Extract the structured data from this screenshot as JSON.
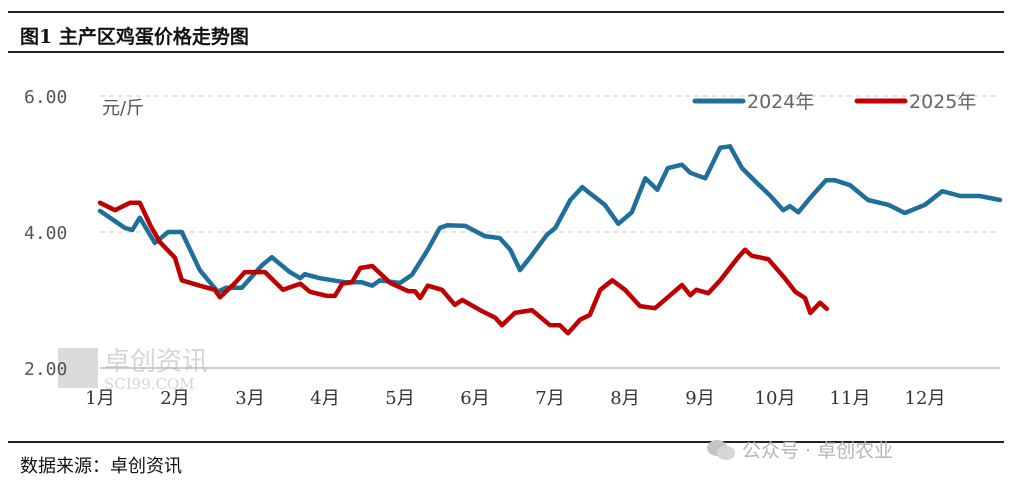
{
  "header": {
    "title": "图1  主产区鸡蛋价格走势图"
  },
  "footer": {
    "source": "数据来源：卓创资讯",
    "watermark": "公众号 · 卓创农业"
  },
  "chart_watermark": {
    "name": "卓创资讯",
    "domain": "SCI99.COM"
  },
  "chart_data": {
    "type": "line",
    "title": "主产区鸡蛋价格走势图",
    "ylabel": "元/斤",
    "ylim": [
      2,
      6
    ],
    "yticks": [
      "2.00",
      "4.00",
      "6.00"
    ],
    "ytick_values": [
      2,
      4,
      6
    ],
    "xlim": [
      0,
      12
    ],
    "xticks": [
      "1月",
      "2月",
      "3月",
      "4月",
      "5月",
      "6月",
      "7月",
      "8月",
      "9月",
      "10月",
      "11月",
      "12月"
    ],
    "grid": true,
    "legend_position": "top-right",
    "colors": {
      "2024年": "#1f6f9b",
      "2025年": "#c00000"
    },
    "series": [
      {
        "name": "2024年",
        "x": [
          0,
          0.33,
          0.43,
          0.53,
          0.73,
          0.91,
          1.09,
          1.33,
          1.57,
          1.68,
          1.89,
          2.16,
          2.29,
          2.53,
          2.67,
          2.73,
          2.93,
          3.27,
          3.49,
          3.63,
          3.73,
          4.0,
          4.16,
          4.37,
          4.53,
          4.63,
          4.87,
          5.13,
          5.33,
          5.47,
          5.6,
          5.73,
          5.96,
          6.07,
          6.27,
          6.43,
          6.53,
          6.73,
          6.91,
          7.09,
          7.27,
          7.43,
          7.57,
          7.76,
          7.87,
          8.07,
          8.27,
          8.4,
          8.56,
          8.76,
          8.93,
          9.11,
          9.2,
          9.31,
          9.49,
          9.68,
          9.8,
          10.0,
          10.24,
          10.51,
          10.73,
          11.0,
          11.23,
          11.47,
          11.73,
          12.0
        ],
        "values": [
          4.31,
          4.06,
          4.03,
          4.21,
          3.84,
          4.0,
          4.0,
          3.44,
          3.12,
          3.18,
          3.18,
          3.51,
          3.63,
          3.41,
          3.32,
          3.38,
          3.32,
          3.26,
          3.26,
          3.21,
          3.29,
          3.25,
          3.37,
          3.74,
          4.06,
          4.1,
          4.09,
          3.94,
          3.91,
          3.74,
          3.44,
          3.62,
          3.96,
          4.06,
          4.47,
          4.66,
          4.57,
          4.4,
          4.12,
          4.29,
          4.79,
          4.62,
          4.94,
          4.99,
          4.87,
          4.79,
          5.24,
          5.26,
          4.94,
          4.72,
          4.54,
          4.32,
          4.38,
          4.29,
          4.53,
          4.76,
          4.76,
          4.69,
          4.47,
          4.4,
          4.28,
          4.4,
          4.6,
          4.53,
          4.53,
          4.47
        ]
      },
      {
        "name": "2025年",
        "x": [
          0,
          0.2,
          0.4,
          0.53,
          0.67,
          0.8,
          1.0,
          1.09,
          1.33,
          1.53,
          1.6,
          1.8,
          1.93,
          2.2,
          2.44,
          2.67,
          2.8,
          3.03,
          3.13,
          3.23,
          3.36,
          3.47,
          3.63,
          3.87,
          4.11,
          4.2,
          4.27,
          4.37,
          4.56,
          4.73,
          4.83,
          5.07,
          5.27,
          5.36,
          5.53,
          5.76,
          6.0,
          6.13,
          6.24,
          6.4,
          6.53,
          6.67,
          6.83,
          7.0,
          7.2,
          7.4,
          7.57,
          7.76,
          7.87,
          7.95,
          8.11,
          8.27,
          8.51,
          8.6,
          8.69,
          8.91,
          9.13,
          9.27,
          9.4,
          9.47,
          9.6,
          9.69
        ],
        "values": [
          4.43,
          4.32,
          4.43,
          4.43,
          4.1,
          3.85,
          3.62,
          3.29,
          3.21,
          3.15,
          3.04,
          3.25,
          3.41,
          3.41,
          3.15,
          3.24,
          3.12,
          3.06,
          3.06,
          3.24,
          3.26,
          3.47,
          3.5,
          3.25,
          3.13,
          3.13,
          3.03,
          3.21,
          3.15,
          2.93,
          3.0,
          2.85,
          2.74,
          2.63,
          2.81,
          2.85,
          2.63,
          2.63,
          2.51,
          2.71,
          2.78,
          3.15,
          3.29,
          3.15,
          2.91,
          2.88,
          3.04,
          3.22,
          3.07,
          3.15,
          3.1,
          3.29,
          3.63,
          3.74,
          3.65,
          3.6,
          3.32,
          3.12,
          3.03,
          2.81,
          2.96,
          2.87
        ]
      }
    ]
  }
}
